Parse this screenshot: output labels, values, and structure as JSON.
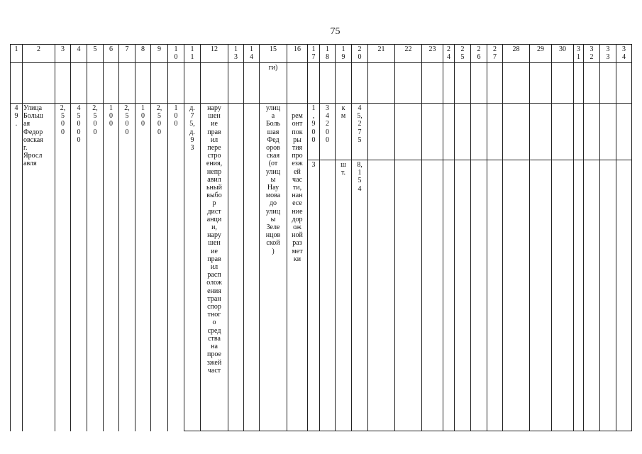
{
  "page_number": "75",
  "header": [
    "1",
    "2",
    "3",
    "4",
    "5",
    "6",
    "7",
    "8",
    "9",
    "1\n0",
    "1\n1",
    "12",
    "1\n3",
    "1\n4",
    "15",
    "16",
    "1\n7",
    "1\n8",
    "1\n9",
    "2\n0",
    "21",
    "22",
    "23",
    "2\n4",
    "2\n5",
    "2\n6",
    "2\n7",
    "28",
    "29",
    "30",
    "3\n1",
    "3\n2",
    "3\n3",
    "3\n4"
  ],
  "continuation_row": {
    "col15": "ги)"
  },
  "record": {
    "c1": "4\n9\n.",
    "c2": "Улица\nБольш\nая\nФедор\nовская\nг.\nЯросл\nавля",
    "c3": "2,\n5\n0\n0",
    "c4": "4\n5\n0\n0\n0",
    "c5": "2,\n5\n0\n0",
    "c6": "1\n0\n0",
    "c7": "2,\n5\n0\n0",
    "c8": "1\n0\n0",
    "c9": "2,\n5\n0\n0",
    "c10": "1\n0\n0",
    "c11": "д.\n7\n5,\nд.\n9\n3",
    "c12": "нару\nшен\nие\nправ\nил\nпере\nстро\nения,\nнепр\nавил\nьный\nвыбо\nр\nдист\nанци\nи,\nнару\nшен\nие\nправ\nил\nрасп\nолож\nения\nтран\nспор\nтног\nо\nсред\nства\nна\nпрое\nзжей\nчаст",
    "c13": "",
    "c14": "",
    "c15": "улиц\nа\nБоль\nшая\nФед\nоров\nская\n(от\nулиц\nы\nНау\nмова\nдо\nулиц\nы\nЗеле\nнцов\nской\n)",
    "c16": "\nрем\nонт\nпок\nры\nтия\nпро\nезж\nей\nчас\nти,\nнан\nесе\nние\nдор\nож\nной\nраз\nмет\nки",
    "sub_a": {
      "c17": "1\n,\n9\n0\n0",
      "c18": "3\n4\n2\n0\n0",
      "c19": "к\nм",
      "c20": "4\n5,\n2\n7\n5"
    },
    "sub_b": {
      "c17": "3",
      "c18": "",
      "c19": "ш\nт.",
      "c20": "8,\n1\n5\n4"
    }
  }
}
